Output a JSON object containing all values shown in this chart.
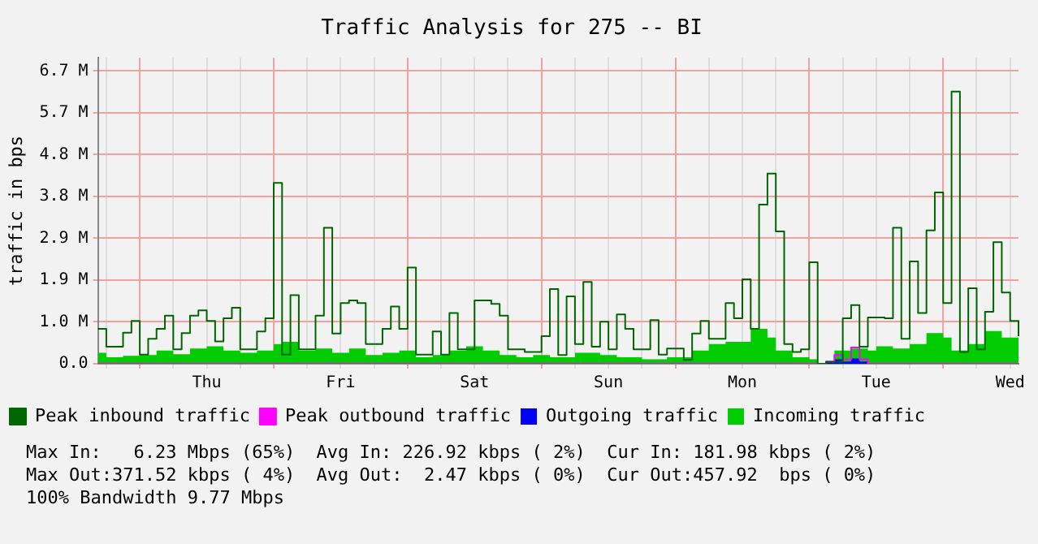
{
  "chart_data": {
    "type": "step",
    "title": "Traffic Analysis for 275 -- BI",
    "ylabel": "traffic in bps",
    "categories": [
      null,
      null,
      null,
      null,
      null,
      null,
      null,
      null,
      null,
      null,
      null,
      null,
      null,
      "Thu",
      null,
      null,
      null,
      null,
      null,
      null,
      null,
      null,
      null,
      null,
      null,
      null,
      null,
      null,
      null,
      "Fri",
      null,
      null,
      null,
      null,
      null,
      null,
      null,
      null,
      null,
      null,
      null,
      null,
      null,
      null,
      null,
      "Sat",
      null,
      null,
      null,
      null,
      null,
      null,
      null,
      null,
      null,
      null,
      null,
      null,
      null,
      null,
      null,
      "Sun",
      null,
      null,
      null,
      null,
      null,
      null,
      null,
      null,
      null,
      null,
      null,
      null,
      null,
      null,
      null,
      "Mon",
      null,
      null,
      null,
      null,
      null,
      null,
      null,
      null,
      null,
      null,
      null,
      null,
      null,
      null,
      null,
      "Tue",
      null,
      null,
      null,
      null,
      null,
      null,
      null,
      null,
      null,
      null,
      null,
      null,
      null,
      null,
      null,
      "Wed",
      null
    ],
    "ylim": [
      0,
      7.0
    ],
    "yticks": [
      {
        "value": 0,
        "label": "0.0"
      },
      {
        "value": 0.957,
        "label": "1.0 M"
      },
      {
        "value": 1.914,
        "label": "1.9 M"
      },
      {
        "value": 2.871,
        "label": "2.9 M"
      },
      {
        "value": 3.828,
        "label": "3.8 M"
      },
      {
        "value": 4.785,
        "label": "4.8 M"
      },
      {
        "value": 5.742,
        "label": "5.7 M"
      },
      {
        "value": 6.699,
        "label": "6.7 M"
      }
    ],
    "grid": true,
    "legend": "bottom",
    "series": [
      {
        "name": "Peak inbound traffic",
        "color": "#006600",
        "values": [
          0.8,
          0.39,
          0.39,
          0.71,
          0.98,
          0.21,
          0.57,
          0.8,
          1.1,
          0.33,
          0.7,
          1.1,
          1.22,
          0.98,
          0.51,
          1.04,
          1.28,
          0.33,
          0.33,
          0.74,
          1.04,
          4.14,
          0.21,
          1.57,
          0.33,
          0.33,
          1.1,
          3.11,
          0.69,
          1.39,
          1.45,
          1.39,
          0.45,
          0.45,
          0.8,
          1.31,
          0.8,
          2.2,
          0.21,
          0.21,
          0.74,
          0.21,
          1.16,
          0.33,
          0.33,
          1.45,
          1.45,
          1.37,
          1.1,
          0.33,
          0.33,
          0.27,
          0.27,
          0.63,
          1.71,
          0.2,
          1.54,
          0.45,
          1.87,
          0.39,
          0.96,
          0.33,
          1.13,
          0.8,
          0.33,
          0.33,
          1.0,
          0.21,
          0.35,
          0.35,
          0.09,
          0.69,
          0.98,
          0.57,
          0.57,
          1.39,
          1.04,
          1.93,
          0.8,
          3.64,
          4.35,
          3.03,
          0.45,
          0.27,
          0.33,
          2.32,
          0,
          0.04,
          0.04,
          1.04,
          1.34,
          0.39,
          1.06,
          1.06,
          1.04,
          3.11,
          0.57,
          2.34,
          1.16,
          3.05,
          3.92,
          1.39,
          6.23,
          0.27,
          1.73,
          0.33,
          1.19,
          2.78,
          1.63,
          0.98,
          0.63
        ]
      },
      {
        "name": "Incoming traffic",
        "type": "area",
        "color": "#00cc00",
        "values": [
          0.25,
          0.15,
          0.15,
          0.18,
          0.18,
          0.2,
          0.2,
          0.3,
          0.3,
          0.22,
          0.22,
          0.35,
          0.35,
          0.4,
          0.4,
          0.3,
          0.3,
          0.25,
          0.25,
          0.3,
          0.3,
          0.45,
          0.5,
          0.5,
          0.3,
          0.3,
          0.35,
          0.35,
          0.25,
          0.25,
          0.35,
          0.35,
          0.2,
          0.2,
          0.25,
          0.25,
          0.3,
          0.3,
          0.15,
          0.15,
          0.2,
          0.2,
          0.3,
          0.3,
          0.4,
          0.4,
          0.3,
          0.3,
          0.2,
          0.2,
          0.15,
          0.15,
          0.2,
          0.2,
          0.15,
          0.15,
          0.15,
          0.25,
          0.25,
          0.25,
          0.2,
          0.2,
          0.15,
          0.15,
          0.15,
          0.1,
          0.1,
          0.1,
          0.15,
          0.15,
          0.15,
          0.3,
          0.3,
          0.45,
          0.45,
          0.5,
          0.5,
          0.5,
          0.8,
          0.8,
          0.6,
          0.3,
          0.3,
          0.15,
          0.15,
          0.1,
          0,
          0.05,
          0.3,
          0.3,
          0.35,
          0.35,
          0.3,
          0.4,
          0.4,
          0.35,
          0.35,
          0.45,
          0.45,
          0.7,
          0.7,
          0.6,
          0.3,
          0.3,
          0.45,
          0.45,
          0.75,
          0.75,
          0.6,
          0.6,
          0.3
        ]
      },
      {
        "name": "Peak outbound traffic",
        "color": "#ff00ff",
        "values": [
          0,
          0,
          0,
          0,
          0,
          0,
          0,
          0,
          0,
          0,
          0,
          0,
          0,
          0,
          0,
          0,
          0,
          0,
          0,
          0,
          0,
          0,
          0,
          0,
          0,
          0,
          0,
          0,
          0,
          0,
          0,
          0,
          0,
          0,
          0,
          0,
          0,
          0,
          0,
          0,
          0,
          0,
          0,
          0,
          0,
          0,
          0,
          0,
          0,
          0,
          0,
          0,
          0,
          0,
          0,
          0,
          0,
          0,
          0,
          0,
          0,
          0,
          0,
          0,
          0,
          0,
          0,
          0,
          0,
          0,
          0,
          0,
          0,
          0,
          0,
          0,
          0,
          0,
          0,
          0,
          0,
          0,
          0,
          0,
          0,
          0,
          0,
          0.05,
          0.2,
          0.1,
          0.37,
          0.1,
          0,
          0,
          0,
          0,
          0,
          0,
          0,
          0,
          0,
          0,
          0,
          0,
          0,
          0,
          0,
          0,
          0,
          0,
          0
        ]
      },
      {
        "name": "Outgoing traffic",
        "type": "area",
        "color": "#0000ff",
        "values": [
          0,
          0,
          0,
          0,
          0,
          0,
          0,
          0,
          0,
          0,
          0,
          0,
          0,
          0,
          0,
          0,
          0,
          0,
          0,
          0,
          0,
          0,
          0,
          0,
          0,
          0,
          0,
          0,
          0,
          0,
          0,
          0,
          0,
          0,
          0,
          0,
          0,
          0,
          0,
          0,
          0,
          0,
          0,
          0,
          0,
          0,
          0,
          0,
          0,
          0,
          0,
          0,
          0,
          0,
          0,
          0,
          0,
          0,
          0,
          0,
          0,
          0,
          0,
          0,
          0,
          0,
          0,
          0,
          0,
          0,
          0,
          0,
          0,
          0,
          0,
          0,
          0,
          0,
          0,
          0,
          0,
          0,
          0,
          0,
          0,
          0,
          0,
          0.03,
          0.1,
          0.05,
          0.12,
          0.05,
          0,
          0,
          0,
          0,
          0,
          0,
          0,
          0,
          0,
          0,
          0,
          0,
          0,
          0,
          0,
          0,
          0,
          0,
          0
        ]
      }
    ],
    "annotations": [
      "Max In:   6.23 Mbps (65%)  Avg In: 226.92 kbps ( 2%)  Cur In: 181.98 kbps ( 2%)",
      "Max Out:371.52 kbps ( 4%)  Avg Out:  2.47 kbps ( 0%)  Cur Out:457.92  bps ( 0%)",
      "100% Bandwidth 9.77 Mbps"
    ]
  }
}
